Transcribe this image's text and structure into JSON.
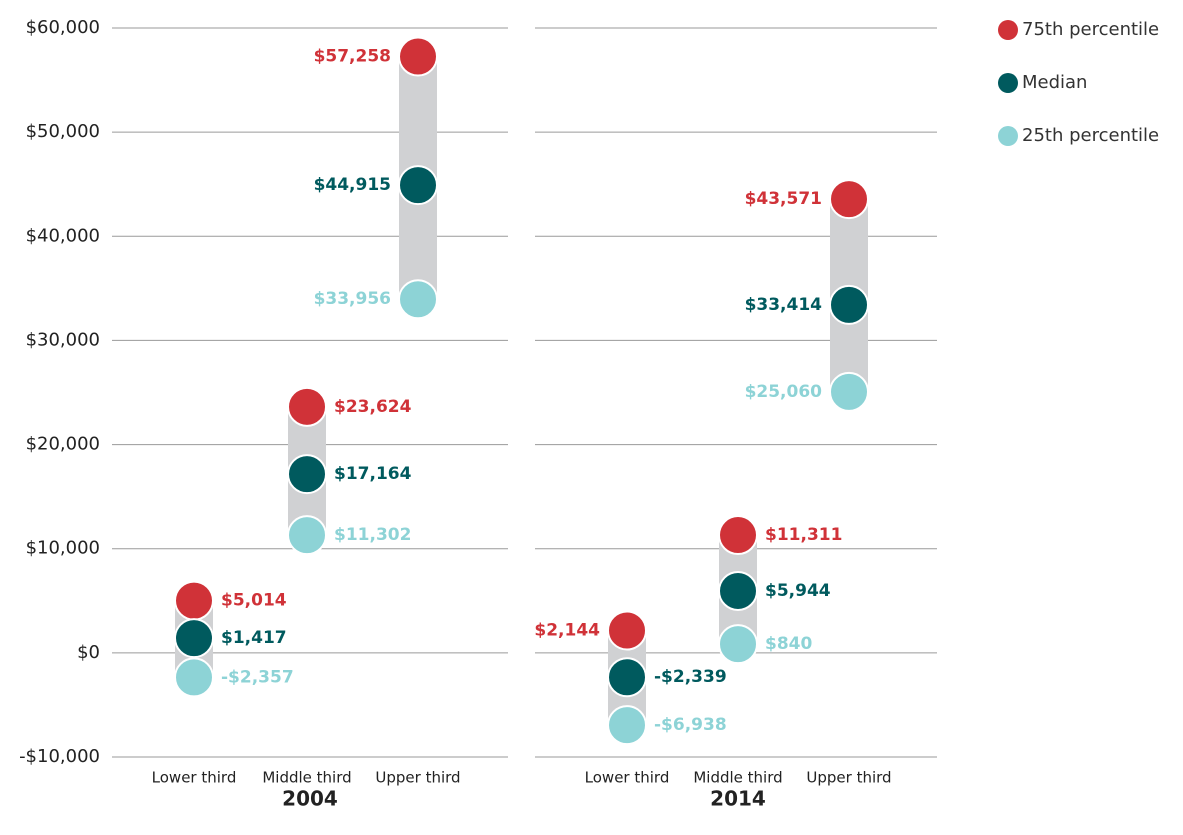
{
  "chart_data": {
    "type": "dot-range",
    "panels": [
      "2004",
      "2014"
    ],
    "categories": [
      "Lower third",
      "Middle third",
      "Upper third",
      "Lower third",
      "Middle third",
      "Upper third"
    ],
    "series": [
      {
        "name": "75th percentile",
        "color": "#d03238",
        "values": [
          5014,
          23624,
          57258,
          2144,
          11311,
          43571
        ],
        "value_labels": [
          "$5,014",
          "$23,624",
          "$57,258",
          "$2,144",
          "$11,311",
          "$43,571"
        ]
      },
      {
        "name": "Median",
        "color": "#005a5e",
        "values": [
          1417,
          17164,
          44915,
          -2339,
          5944,
          33414
        ],
        "value_labels": [
          "$1,417",
          "$17,164",
          "$44,915",
          "-$2,339",
          "$5,944",
          "$33,414"
        ]
      },
      {
        "name": "25th percentile",
        "color": "#8dd3d6",
        "values": [
          -2357,
          11302,
          33956,
          -6938,
          840,
          25060
        ],
        "value_labels": [
          "-$2,357",
          "$11,302",
          "$33,956",
          "-$6,938",
          "$840",
          "$25,060"
        ]
      }
    ],
    "range_color": "#d0d1d3",
    "ylim": [
      -10000,
      60000
    ],
    "yticks": [
      {
        "value": -10000,
        "label": "-$10,000"
      },
      {
        "value": 0,
        "label": "$0"
      },
      {
        "value": 10000,
        "label": "$10,000"
      },
      {
        "value": 20000,
        "label": "$20,000"
      },
      {
        "value": 30000,
        "label": "$30,000"
      },
      {
        "value": 40000,
        "label": "$40,000"
      },
      {
        "value": 50000,
        "label": "$50,000"
      },
      {
        "value": 60000,
        "label": "$60,000"
      }
    ],
    "grid": true,
    "legend": "top-right"
  }
}
